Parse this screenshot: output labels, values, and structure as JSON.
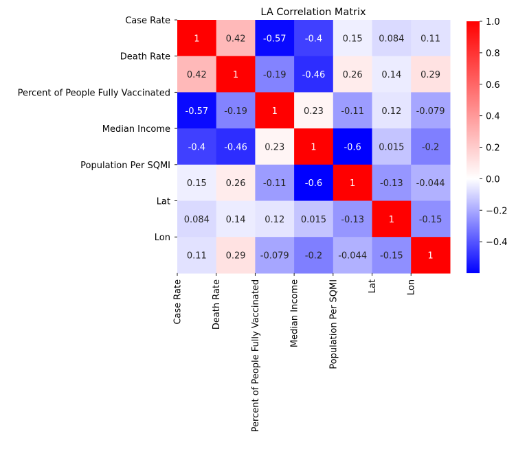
{
  "chart_data": {
    "type": "heatmap",
    "title": "LA Correlation Matrix",
    "row_labels": [
      "Case Rate",
      "Death Rate",
      "Percent of People Fully Vaccinated",
      "Median Income",
      "Population Per SQMI",
      "Lat",
      "Lon"
    ],
    "col_labels": [
      "Case Rate",
      "Death Rate",
      "Percent of People Fully Vaccinated",
      "Median Income",
      "Population Per SQMI",
      "Lat",
      "Lon"
    ],
    "values": [
      [
        1,
        0.42,
        -0.57,
        -0.4,
        0.15,
        0.084,
        0.11
      ],
      [
        0.42,
        1,
        -0.19,
        -0.46,
        0.26,
        0.14,
        0.29
      ],
      [
        -0.57,
        -0.19,
        1,
        0.23,
        -0.11,
        0.12,
        -0.079
      ],
      [
        -0.4,
        -0.46,
        0.23,
        1,
        -0.6,
        0.015,
        -0.2
      ],
      [
        0.15,
        0.26,
        -0.11,
        -0.6,
        1,
        -0.13,
        -0.044
      ],
      [
        0.084,
        0.14,
        0.12,
        0.015,
        -0.13,
        1,
        -0.15
      ],
      [
        0.11,
        0.29,
        -0.079,
        -0.2,
        -0.044,
        -0.15,
        1
      ]
    ],
    "value_labels": [
      [
        "1",
        "0.42",
        "-0.57",
        "-0.4",
        "0.15",
        "0.084",
        "0.11"
      ],
      [
        "0.42",
        "1",
        "-0.19",
        "-0.46",
        "0.26",
        "0.14",
        "0.29"
      ],
      [
        "-0.57",
        "-0.19",
        "1",
        "0.23",
        "-0.11",
        "0.12",
        "-0.079"
      ],
      [
        "-0.4",
        "-0.46",
        "0.23",
        "1",
        "-0.6",
        "0.015",
        "-0.2"
      ],
      [
        "0.15",
        "0.26",
        "-0.11",
        "-0.6",
        "1",
        "-0.13",
        "-0.044"
      ],
      [
        "0.084",
        "0.14",
        "0.12",
        "0.015",
        "-0.13",
        "1",
        "-0.15"
      ],
      [
        "0.11",
        "0.29",
        "-0.079",
        "-0.2",
        "-0.044",
        "-0.15",
        "1"
      ]
    ],
    "colormap": "bwr",
    "color_low": "#0000ff",
    "color_mid": "#ffffff",
    "color_high": "#ff0000",
    "vmin": -0.6,
    "vmax": 1,
    "colorbar": {
      "ticks": [
        1.0,
        0.8,
        0.6,
        0.4,
        0.2,
        0.0,
        -0.2,
        -0.4
      ],
      "tick_labels": [
        "1.0",
        "0.8",
        "0.6",
        "0.4",
        "0.2",
        "0.0",
        "−0.2",
        "−0.4"
      ]
    },
    "grid": false
  }
}
